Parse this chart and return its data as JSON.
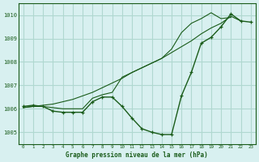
{
  "title": "Graphe pression niveau de la mer (hPa)",
  "background_color": "#d8f0f0",
  "grid_color": "#b0d8d0",
  "line_color": "#1a5c1a",
  "xlim": [
    -0.5,
    23.5
  ],
  "ylim": [
    1004.5,
    1010.5
  ],
  "yticks": [
    1005,
    1006,
    1007,
    1008,
    1009,
    1010
  ],
  "xticks": [
    0,
    1,
    2,
    3,
    4,
    5,
    6,
    7,
    8,
    9,
    10,
    11,
    12,
    13,
    14,
    15,
    16,
    17,
    18,
    19,
    20,
    21,
    22,
    23
  ],
  "series1_x": [
    0,
    1,
    2,
    3,
    4,
    5,
    6,
    7,
    8,
    9,
    10,
    11,
    12,
    13,
    14,
    15,
    16,
    17,
    18,
    19,
    20,
    21,
    22,
    23
  ],
  "series1_y": [
    1006.1,
    1006.15,
    1006.1,
    1005.9,
    1005.85,
    1005.85,
    1005.85,
    1006.3,
    1006.5,
    1006.5,
    1006.1,
    1005.6,
    1005.15,
    1005.0,
    1004.9,
    1004.9,
    1006.55,
    1007.55,
    1008.8,
    1009.05,
    1009.5,
    1010.05,
    1009.75,
    1009.7
  ],
  "series2_x": [
    0,
    1,
    2,
    3,
    4,
    5,
    6,
    7,
    8,
    9,
    10,
    11,
    12,
    13,
    14,
    15,
    16,
    17,
    18,
    19,
    20,
    21,
    22
  ],
  "series2_y": [
    1006.05,
    1006.1,
    1006.15,
    1006.2,
    1006.3,
    1006.4,
    1006.55,
    1006.7,
    1006.9,
    1007.1,
    1007.3,
    1007.55,
    1007.75,
    1007.95,
    1008.15,
    1008.4,
    1008.65,
    1008.9,
    1009.2,
    1009.45,
    1009.65,
    1009.95,
    1009.75
  ],
  "series3_x": [
    0,
    1,
    2,
    3,
    4,
    5,
    6,
    7,
    8,
    9,
    10,
    11,
    12,
    13,
    14,
    15,
    16,
    17,
    18,
    19,
    20,
    21
  ],
  "series3_y": [
    1006.05,
    1006.1,
    1006.1,
    1006.05,
    1006.0,
    1006.0,
    1006.0,
    1006.45,
    1006.6,
    1006.7,
    1007.35,
    1007.55,
    1007.75,
    1007.95,
    1008.15,
    1008.55,
    1009.25,
    1009.65,
    1009.85,
    1010.1,
    1009.85,
    1009.9
  ]
}
